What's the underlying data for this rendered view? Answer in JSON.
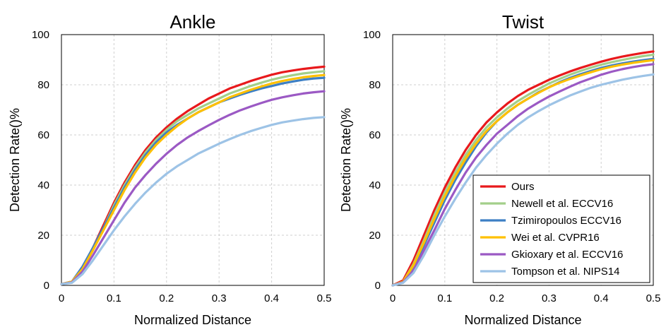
{
  "chart_data": [
    {
      "type": "line",
      "title": "Ankle",
      "xlabel": "Normalized Distance",
      "ylabel": "Detection Rate()%",
      "xlim": [
        0,
        0.5
      ],
      "ylim": [
        0,
        100
      ],
      "xticks": [
        "0",
        "0.1",
        "0.2",
        "0.3",
        "0.4",
        "0.5"
      ],
      "yticks": [
        "0",
        "20",
        "40",
        "60",
        "80",
        "100"
      ],
      "grid": "dashed",
      "legend": null,
      "x": [
        0,
        0.02,
        0.04,
        0.06,
        0.08,
        0.1,
        0.12,
        0.14,
        0.16,
        0.18,
        0.2,
        0.22,
        0.24,
        0.26,
        0.28,
        0.3,
        0.32,
        0.34,
        0.36,
        0.38,
        0.4,
        0.42,
        0.44,
        0.46,
        0.48,
        0.5
      ],
      "series": [
        {
          "name": "Ours",
          "color": "#e8191c",
          "values": [
            0.5,
            1.5,
            7,
            15,
            24,
            33,
            41,
            48,
            54,
            59,
            63,
            66.5,
            69.5,
            72,
            74.5,
            76.5,
            78.5,
            80,
            81.5,
            82.8,
            84,
            85,
            85.7,
            86.3,
            86.8,
            87.2
          ]
        },
        {
          "name": "Newell et al. ECCV16",
          "color": "#a3cf8a",
          "values": [
            0.5,
            1.5,
            7,
            15,
            23,
            32,
            40,
            47,
            53,
            58,
            62,
            65.5,
            68,
            70.5,
            72.5,
            74.5,
            76.5,
            78,
            79.5,
            80.8,
            82,
            83,
            83.8,
            84.5,
            85,
            85.4
          ]
        },
        {
          "name": "Tzimiropoulos ECCV16",
          "color": "#3d7fc4",
          "values": [
            0.5,
            1.5,
            7.5,
            15,
            23,
            31,
            39,
            46,
            52,
            57,
            61,
            64,
            66.5,
            69,
            71,
            73,
            74.5,
            76,
            77.3,
            78.5,
            79.5,
            80.5,
            81.3,
            82,
            82.5,
            82.8
          ]
        },
        {
          "name": "Wei et al. CVPR16",
          "color": "#ffc000",
          "values": [
            0.5,
            1.5,
            6.5,
            14,
            22,
            30,
            38,
            45,
            51,
            56,
            60,
            63.5,
            66.5,
            69,
            71,
            73,
            75,
            76.5,
            78,
            79.3,
            80.5,
            81.5,
            82.3,
            83,
            83.5,
            83.9
          ]
        },
        {
          "name": "Gkioxary et al. ECCV16",
          "color": "#9b59c4",
          "values": [
            0.5,
            1.2,
            5.5,
            12,
            19,
            26,
            33,
            39,
            44,
            48.5,
            52.5,
            56,
            59,
            61.5,
            63.8,
            66,
            68,
            69.8,
            71.3,
            72.7,
            74,
            75,
            75.8,
            76.5,
            77,
            77.4
          ]
        },
        {
          "name": "Tompson et al. NIPS14",
          "color": "#9dc3e6",
          "values": [
            0.5,
            1,
            4.5,
            10,
            16,
            22,
            27.5,
            32.5,
            37,
            41,
            44.5,
            47.5,
            50,
            52.5,
            54.5,
            56.5,
            58.3,
            60,
            61.5,
            62.8,
            64,
            65,
            65.7,
            66.3,
            66.8,
            67.1
          ]
        }
      ]
    },
    {
      "type": "line",
      "title": "Twist",
      "xlabel": "Normalized Distance",
      "ylabel": "Detection Rate()%",
      "xlim": [
        0,
        0.5
      ],
      "ylim": [
        0,
        100
      ],
      "xticks": [
        "0",
        "0.1",
        "0.2",
        "0.3",
        "0.4",
        "0.5"
      ],
      "yticks": [
        "0",
        "20",
        "40",
        "60",
        "80",
        "100"
      ],
      "grid": "dashed",
      "legend": "bottom-right",
      "x": [
        0,
        0.02,
        0.04,
        0.06,
        0.08,
        0.1,
        0.12,
        0.14,
        0.16,
        0.18,
        0.2,
        0.22,
        0.24,
        0.26,
        0.28,
        0.3,
        0.32,
        0.34,
        0.36,
        0.38,
        0.4,
        0.42,
        0.44,
        0.46,
        0.48,
        0.5
      ],
      "series": [
        {
          "name": "Ours",
          "color": "#e8191c",
          "values": [
            0,
            2,
            10,
            20,
            30,
            39,
            47,
            54,
            60,
            65,
            69,
            72.5,
            75.5,
            78,
            80,
            82,
            83.7,
            85.3,
            86.7,
            88,
            89.2,
            90.3,
            91.2,
            92,
            92.7,
            93.3
          ]
        },
        {
          "name": "Newell et al. ECCV16",
          "color": "#a3cf8a",
          "values": [
            0,
            1.5,
            8.5,
            18,
            28,
            37,
            45,
            52,
            58,
            63,
            67,
            70.5,
            73.5,
            76,
            78.3,
            80.5,
            82.3,
            84,
            85.5,
            86.8,
            88,
            89,
            89.9,
            90.7,
            91.4,
            92
          ]
        },
        {
          "name": "Tzimiropoulos ECCV16",
          "color": "#3d7fc4",
          "values": [
            0,
            1.5,
            7,
            16,
            25,
            34,
            42,
            49,
            55.5,
            61,
            65.5,
            69,
            72,
            74.5,
            77,
            79,
            81,
            82.7,
            84.2,
            85.5,
            86.7,
            87.7,
            88.5,
            89.2,
            89.8,
            90.3
          ]
        },
        {
          "name": "Wei et al. CVPR16",
          "color": "#ffc000",
          "values": [
            0,
            1.5,
            8,
            17,
            26.5,
            35.5,
            43.5,
            50.5,
            56.5,
            61.5,
            65.5,
            69,
            72,
            74.5,
            76.8,
            79,
            80.8,
            82.3,
            83.7,
            85,
            86.2,
            87.2,
            88,
            88.7,
            89.3,
            89.8
          ]
        },
        {
          "name": "Gkioxary et al. ECCV16",
          "color": "#9b59c4",
          "values": [
            0,
            1.2,
            6,
            14,
            22,
            30.5,
            38,
            45,
            51,
            56,
            60.5,
            64,
            67.5,
            70.5,
            73,
            75.3,
            77.3,
            79.2,
            81,
            82.5,
            84,
            85.2,
            86.2,
            87,
            87.7,
            88.2
          ]
        },
        {
          "name": "Tompson et al. NIPS14",
          "color": "#9dc3e6",
          "values": [
            0,
            1,
            5,
            12,
            20,
            27.5,
            34.5,
            41,
            47,
            52,
            56.5,
            60.5,
            64,
            67,
            69.5,
            71.8,
            73.8,
            75.7,
            77.3,
            78.8,
            80,
            81,
            82,
            82.8,
            83.5,
            84.1
          ]
        }
      ]
    }
  ]
}
